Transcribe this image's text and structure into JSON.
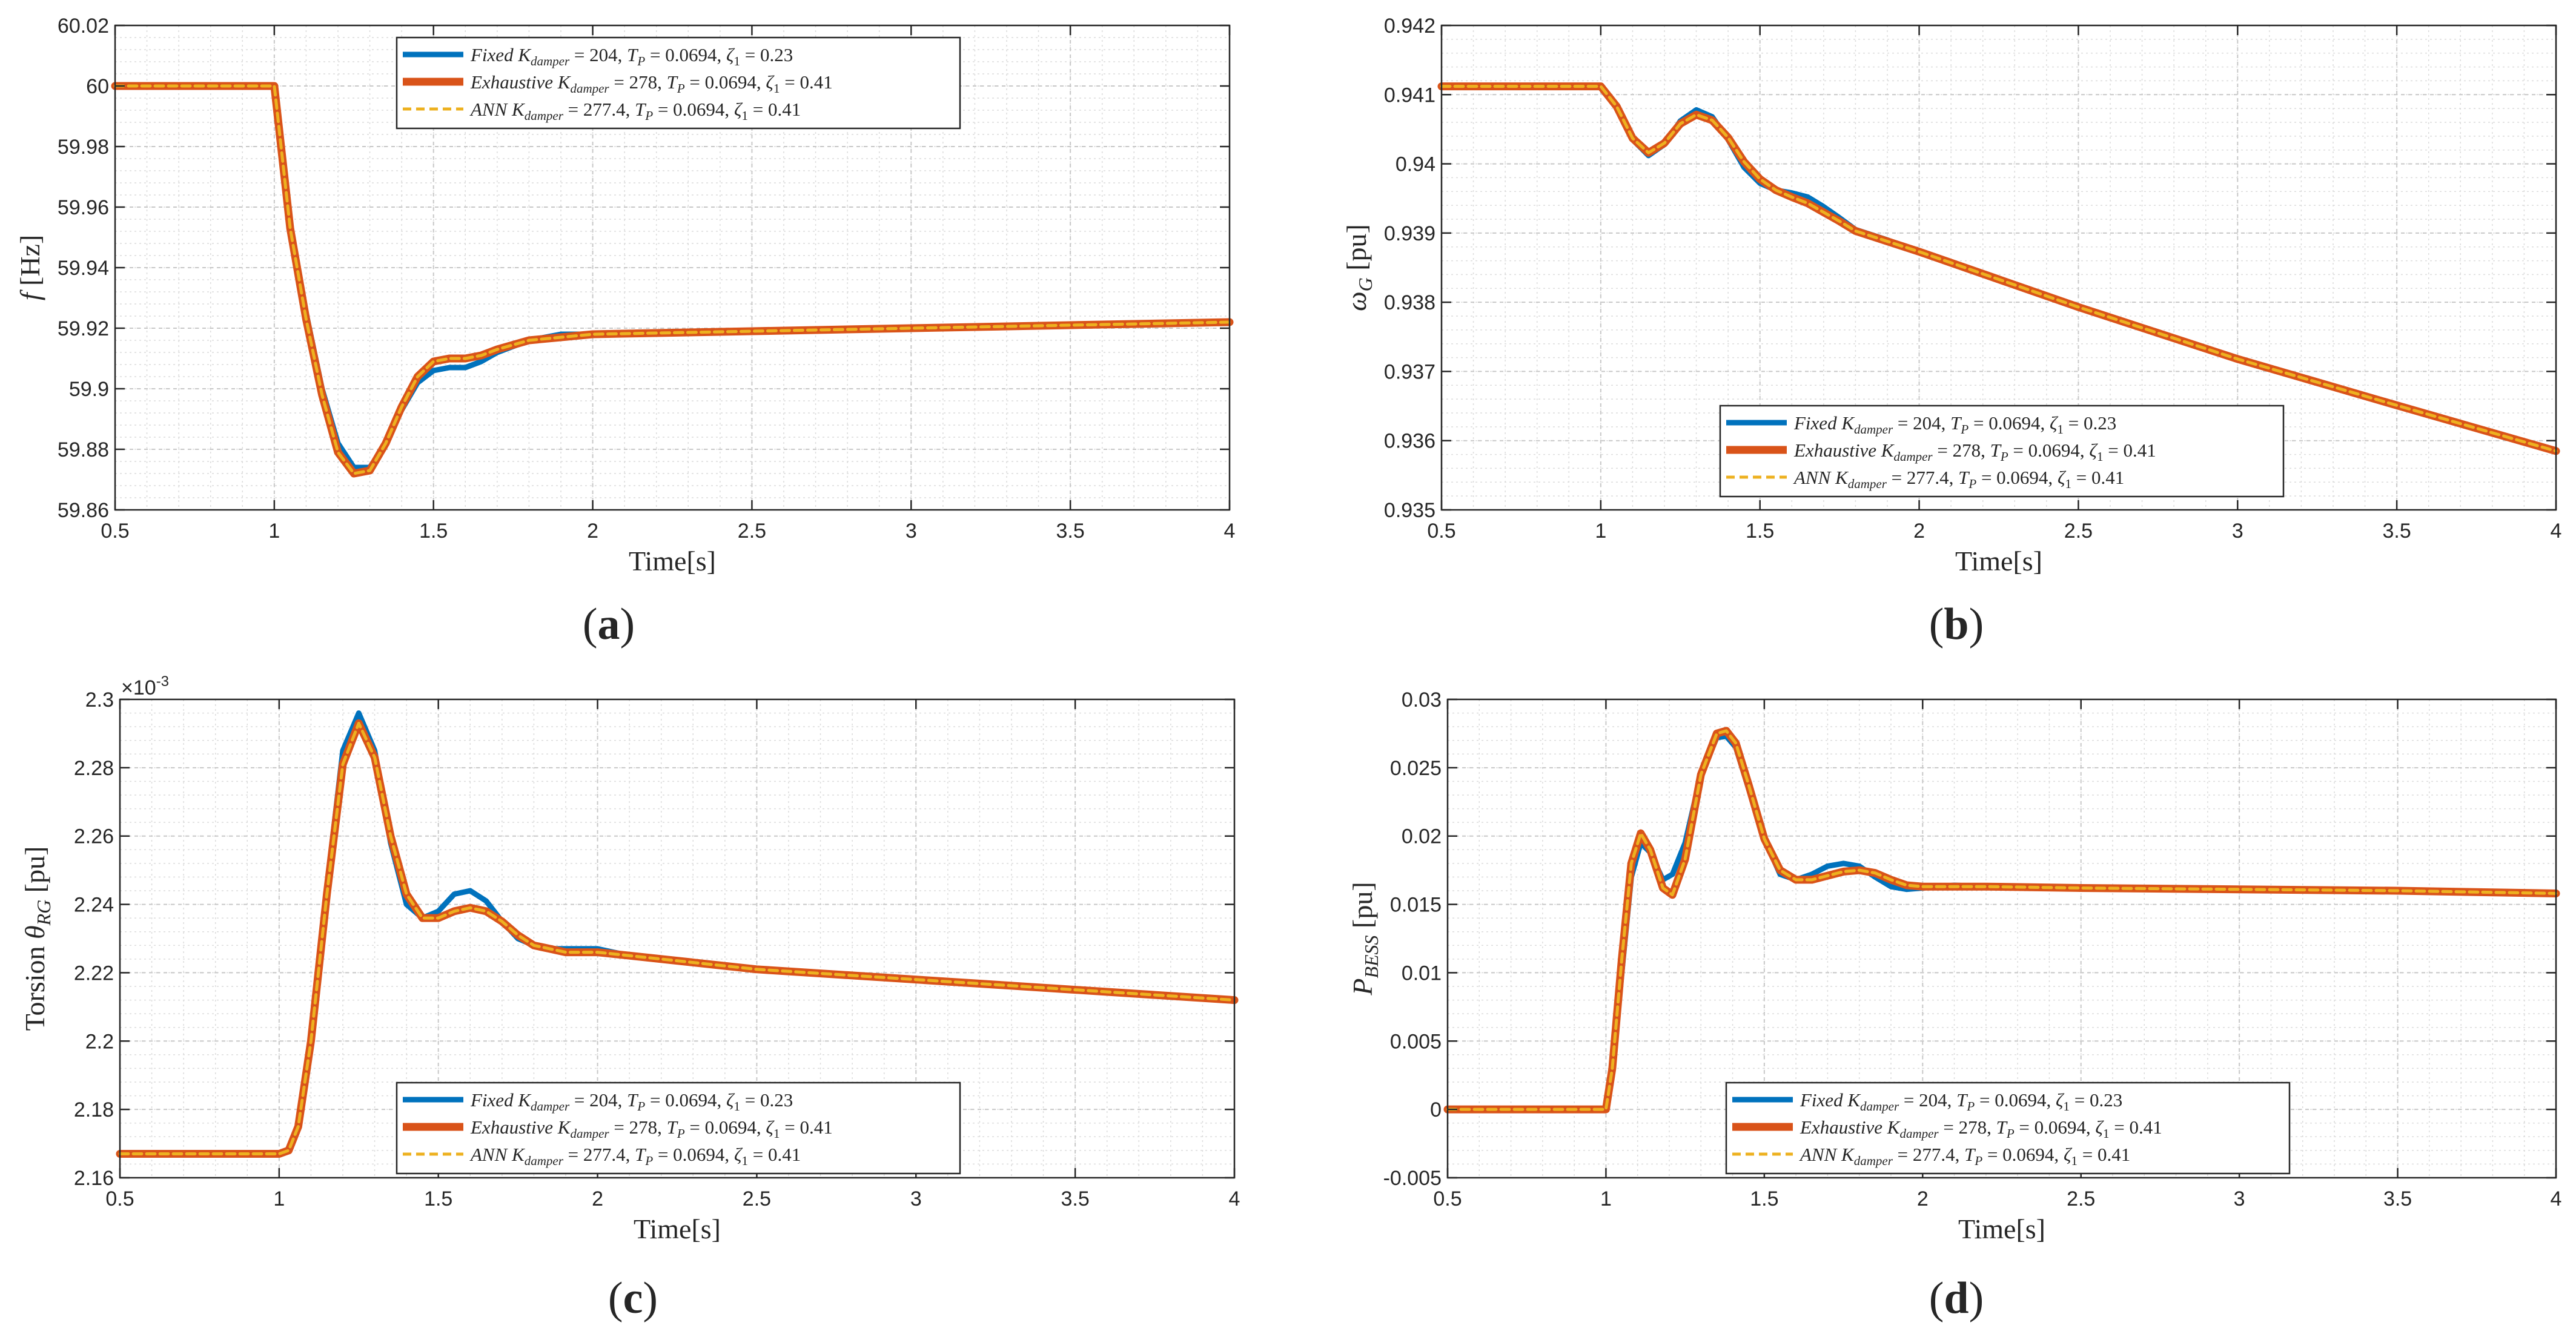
{
  "legend_labels": [
    "Fixed K_damper = 204,  T_P = 0.0694,  ζ1 = 0.23",
    "Exhaustive K_damper = 278,  T_P = 0.0694,  ζ1 = 0.41",
    "ANN K_damper = 277.4,  T_P = 0.0694,  ζ1 = 0.41"
  ],
  "colors": {
    "fixed": "#0072BD",
    "exhaustive": "#D95319",
    "ann": "#EDB120",
    "axis": "#262626",
    "grid": "#c8c8c8"
  },
  "chart_data": [
    {
      "type": "line",
      "caption": "(a)",
      "caption_letter": "a",
      "xlabel": "Time[s]",
      "ylabel": "f [Hz]",
      "ylabel_var": "f",
      "ylabel_unit": "[Hz]",
      "xlim": [
        0.5,
        4
      ],
      "ylim": [
        59.86,
        60.02
      ],
      "xticks": [
        0.5,
        1,
        1.5,
        2,
        2.5,
        3,
        3.5,
        4
      ],
      "yticks": [
        59.86,
        59.88,
        59.9,
        59.92,
        59.94,
        59.96,
        59.98,
        60,
        60.02
      ],
      "ytick_labels": [
        "59.86",
        "59.88",
        "59.9",
        "59.92",
        "59.94",
        "59.96",
        "59.98",
        "60",
        "60.02"
      ],
      "legend_location": "top-center",
      "grid": true,
      "series": [
        {
          "name": "Fixed",
          "x": [
            0.5,
            1.0,
            1.05,
            1.1,
            1.15,
            1.2,
            1.25,
            1.3,
            1.35,
            1.4,
            1.45,
            1.5,
            1.55,
            1.6,
            1.65,
            1.7,
            1.8,
            1.9,
            2.0,
            2.5,
            3.0,
            3.5,
            4.0
          ],
          "y": [
            60.0,
            60.0,
            59.955,
            59.925,
            59.9,
            59.882,
            59.874,
            59.874,
            59.882,
            59.893,
            59.902,
            59.906,
            59.907,
            59.907,
            59.909,
            59.912,
            59.916,
            59.918,
            59.918,
            59.919,
            59.92,
            59.921,
            59.922
          ]
        },
        {
          "name": "Exhaustive",
          "x": [
            0.5,
            1.0,
            1.05,
            1.1,
            1.15,
            1.2,
            1.25,
            1.3,
            1.35,
            1.4,
            1.45,
            1.5,
            1.55,
            1.6,
            1.65,
            1.7,
            1.8,
            1.9,
            2.0,
            2.5,
            3.0,
            3.5,
            4.0
          ],
          "y": [
            60.0,
            60.0,
            59.953,
            59.923,
            59.898,
            59.879,
            59.872,
            59.873,
            59.882,
            59.894,
            59.904,
            59.909,
            59.91,
            59.91,
            59.911,
            59.913,
            59.916,
            59.917,
            59.918,
            59.919,
            59.92,
            59.921,
            59.922
          ]
        },
        {
          "name": "ANN",
          "x": [
            0.5,
            1.0,
            1.05,
            1.1,
            1.15,
            1.2,
            1.25,
            1.3,
            1.35,
            1.4,
            1.45,
            1.5,
            1.55,
            1.6,
            1.65,
            1.7,
            1.8,
            1.9,
            2.0,
            2.5,
            3.0,
            3.5,
            4.0
          ],
          "y": [
            60.0,
            60.0,
            59.953,
            59.923,
            59.898,
            59.879,
            59.872,
            59.873,
            59.882,
            59.894,
            59.904,
            59.909,
            59.91,
            59.91,
            59.911,
            59.913,
            59.916,
            59.917,
            59.918,
            59.919,
            59.92,
            59.921,
            59.922
          ]
        }
      ]
    },
    {
      "type": "line",
      "caption": "(b)",
      "caption_letter": "b",
      "xlabel": "Time[s]",
      "ylabel": "ωG [pu]",
      "ylabel_var": "ω",
      "ylabel_sub": "G",
      "ylabel_unit": "[pu]",
      "xlim": [
        0.5,
        4
      ],
      "ylim": [
        0.935,
        0.942
      ],
      "xticks": [
        0.5,
        1,
        1.5,
        2,
        2.5,
        3,
        3.5,
        4
      ],
      "yticks": [
        0.935,
        0.936,
        0.937,
        0.938,
        0.939,
        0.94,
        0.941,
        0.942
      ],
      "ytick_labels": [
        "0.935",
        "0.936",
        "0.937",
        "0.938",
        "0.939",
        "0.94",
        "0.941",
        "0.942"
      ],
      "legend_location": "bottom-center",
      "grid": true,
      "series": [
        {
          "name": "Fixed",
          "x": [
            0.5,
            1.0,
            1.05,
            1.1,
            1.15,
            1.2,
            1.25,
            1.3,
            1.35,
            1.4,
            1.45,
            1.5,
            1.55,
            1.6,
            1.65,
            1.7,
            1.75,
            1.8,
            1.9,
            2.0,
            2.5,
            3.0,
            3.5,
            4.0
          ],
          "y": [
            0.94112,
            0.94112,
            0.94085,
            0.94035,
            0.94012,
            0.94028,
            0.94062,
            0.94078,
            0.94068,
            0.94035,
            0.93995,
            0.93972,
            0.93962,
            0.93958,
            0.93952,
            0.93938,
            0.93922,
            0.93905,
            0.9389,
            0.93873,
            0.93793,
            0.93718,
            0.93651,
            0.93585
          ]
        },
        {
          "name": "Exhaustive",
          "x": [
            0.5,
            1.0,
            1.05,
            1.1,
            1.15,
            1.2,
            1.25,
            1.3,
            1.35,
            1.4,
            1.45,
            1.5,
            1.55,
            1.6,
            1.65,
            1.7,
            1.75,
            1.8,
            1.9,
            2.0,
            2.5,
            3.0,
            3.5,
            4.0
          ],
          "y": [
            0.94112,
            0.94112,
            0.94083,
            0.94037,
            0.94016,
            0.9403,
            0.94058,
            0.94071,
            0.94063,
            0.94038,
            0.94003,
            0.93978,
            0.93962,
            0.93952,
            0.93943,
            0.9393,
            0.93917,
            0.93903,
            0.93888,
            0.93873,
            0.93793,
            0.93718,
            0.93651,
            0.93585
          ]
        },
        {
          "name": "ANN",
          "x": [
            0.5,
            1.0,
            1.05,
            1.1,
            1.15,
            1.2,
            1.25,
            1.3,
            1.35,
            1.4,
            1.45,
            1.5,
            1.55,
            1.6,
            1.65,
            1.7,
            1.75,
            1.8,
            1.9,
            2.0,
            2.5,
            3.0,
            3.5,
            4.0
          ],
          "y": [
            0.94112,
            0.94112,
            0.94083,
            0.94037,
            0.94016,
            0.9403,
            0.94058,
            0.94071,
            0.94063,
            0.94038,
            0.94003,
            0.93978,
            0.93962,
            0.93952,
            0.93943,
            0.9393,
            0.93917,
            0.93903,
            0.93888,
            0.93873,
            0.93793,
            0.93718,
            0.93651,
            0.93585
          ]
        }
      ]
    },
    {
      "type": "line",
      "caption": "(c)",
      "caption_letter": "c",
      "xlabel": "Time[s]",
      "ylabel": "Torsion θRG [pu]",
      "ylabel_pre": "Torsion ",
      "ylabel_var": "θ",
      "ylabel_sub": "RG",
      "ylabel_unit": "[pu]",
      "exponent": "×10⁻³",
      "exponent_base": "×10",
      "exponent_power": "-3",
      "xlim": [
        0.5,
        4
      ],
      "ylim": [
        2.16,
        2.3
      ],
      "xticks": [
        0.5,
        1,
        1.5,
        2,
        2.5,
        3,
        3.5,
        4
      ],
      "yticks": [
        2.16,
        2.18,
        2.2,
        2.22,
        2.24,
        2.26,
        2.28,
        2.3
      ],
      "ytick_labels": [
        "2.16",
        "2.18",
        "2.2",
        "2.22",
        "2.24",
        "2.26",
        "2.28",
        "2.3"
      ],
      "legend_location": "bottom-center",
      "grid": true,
      "series": [
        {
          "name": "Fixed",
          "x": [
            0.5,
            1.0,
            1.03,
            1.06,
            1.1,
            1.15,
            1.2,
            1.25,
            1.3,
            1.35,
            1.4,
            1.45,
            1.5,
            1.55,
            1.6,
            1.65,
            1.7,
            1.75,
            1.8,
            1.85,
            1.9,
            1.95,
            2.0,
            2.1,
            2.5,
            3.0,
            3.5,
            4.0
          ],
          "y": [
            2.167,
            2.167,
            2.168,
            2.175,
            2.2,
            2.245,
            2.285,
            2.296,
            2.285,
            2.258,
            2.24,
            2.236,
            2.238,
            2.243,
            2.244,
            2.241,
            2.235,
            2.23,
            2.228,
            2.227,
            2.227,
            2.227,
            2.227,
            2.225,
            2.221,
            2.218,
            2.215,
            2.212
          ]
        },
        {
          "name": "Exhaustive",
          "x": [
            0.5,
            1.0,
            1.03,
            1.06,
            1.1,
            1.15,
            1.2,
            1.25,
            1.3,
            1.35,
            1.4,
            1.45,
            1.5,
            1.55,
            1.6,
            1.65,
            1.7,
            1.75,
            1.8,
            1.85,
            1.9,
            1.95,
            2.0,
            2.1,
            2.5,
            3.0,
            3.5,
            4.0
          ],
          "y": [
            2.167,
            2.167,
            2.168,
            2.175,
            2.2,
            2.243,
            2.281,
            2.293,
            2.283,
            2.26,
            2.243,
            2.236,
            2.236,
            2.238,
            2.239,
            2.238,
            2.235,
            2.231,
            2.228,
            2.227,
            2.226,
            2.226,
            2.226,
            2.225,
            2.221,
            2.218,
            2.215,
            2.212
          ]
        },
        {
          "name": "ANN",
          "x": [
            0.5,
            1.0,
            1.03,
            1.06,
            1.1,
            1.15,
            1.2,
            1.25,
            1.3,
            1.35,
            1.4,
            1.45,
            1.5,
            1.55,
            1.6,
            1.65,
            1.7,
            1.75,
            1.8,
            1.85,
            1.9,
            1.95,
            2.0,
            2.1,
            2.5,
            3.0,
            3.5,
            4.0
          ],
          "y": [
            2.167,
            2.167,
            2.168,
            2.175,
            2.2,
            2.243,
            2.281,
            2.293,
            2.283,
            2.26,
            2.243,
            2.236,
            2.236,
            2.238,
            2.239,
            2.238,
            2.235,
            2.231,
            2.228,
            2.227,
            2.226,
            2.226,
            2.226,
            2.225,
            2.221,
            2.218,
            2.215,
            2.212
          ]
        }
      ]
    },
    {
      "type": "line",
      "caption": "(d)",
      "caption_letter": "d",
      "xlabel": "Time[s]",
      "ylabel": "PBESS [pu]",
      "ylabel_var": "P",
      "ylabel_sub": "BESS",
      "ylabel_unit": "[pu]",
      "xlim": [
        0.5,
        4
      ],
      "ylim": [
        -0.005,
        0.03
      ],
      "xticks": [
        0.5,
        1,
        1.5,
        2,
        2.5,
        3,
        3.5,
        4
      ],
      "yticks": [
        -0.005,
        0,
        0.005,
        0.01,
        0.015,
        0.02,
        0.025,
        0.03
      ],
      "ytick_labels": [
        "-0.005",
        "0",
        "0.005",
        "0.01",
        "0.015",
        "0.02",
        "0.025",
        "0.03"
      ],
      "legend_location": "bottom-center",
      "grid": true,
      "series": [
        {
          "name": "Fixed",
          "x": [
            0.5,
            1.0,
            1.02,
            1.05,
            1.08,
            1.11,
            1.14,
            1.18,
            1.21,
            1.25,
            1.3,
            1.35,
            1.38,
            1.41,
            1.45,
            1.5,
            1.55,
            1.6,
            1.65,
            1.7,
            1.75,
            1.8,
            1.85,
            1.9,
            1.95,
            2.0,
            2.05,
            2.1,
            2.2,
            2.5,
            3.0,
            3.5,
            4.0
          ],
          "y": [
            0.0,
            0.0,
            0.003,
            0.01,
            0.017,
            0.0195,
            0.0188,
            0.0168,
            0.0172,
            0.0195,
            0.0245,
            0.0272,
            0.0273,
            0.0265,
            0.0235,
            0.0198,
            0.0172,
            0.0168,
            0.0172,
            0.0178,
            0.018,
            0.0178,
            0.017,
            0.0163,
            0.0161,
            0.0162,
            0.0163,
            0.0164,
            0.0163,
            0.0162,
            0.0161,
            0.016,
            0.0158
          ]
        },
        {
          "name": "Exhaustive",
          "x": [
            0.5,
            1.0,
            1.02,
            1.05,
            1.08,
            1.11,
            1.14,
            1.18,
            1.21,
            1.25,
            1.3,
            1.35,
            1.38,
            1.41,
            1.45,
            1.5,
            1.55,
            1.6,
            1.65,
            1.7,
            1.75,
            1.8,
            1.85,
            1.9,
            1.95,
            2.0,
            2.05,
            2.1,
            2.2,
            2.5,
            3.0,
            3.5,
            4.0
          ],
          "y": [
            0.0,
            0.0,
            0.003,
            0.011,
            0.018,
            0.0202,
            0.019,
            0.0162,
            0.0157,
            0.0183,
            0.0245,
            0.0275,
            0.0277,
            0.0268,
            0.0238,
            0.0198,
            0.0175,
            0.0168,
            0.0168,
            0.0171,
            0.0174,
            0.0175,
            0.0173,
            0.0168,
            0.0164,
            0.0163,
            0.0163,
            0.0163,
            0.0163,
            0.0162,
            0.0161,
            0.016,
            0.0158
          ]
        },
        {
          "name": "ANN",
          "x": [
            0.5,
            1.0,
            1.02,
            1.05,
            1.08,
            1.11,
            1.14,
            1.18,
            1.21,
            1.25,
            1.3,
            1.35,
            1.38,
            1.41,
            1.45,
            1.5,
            1.55,
            1.6,
            1.65,
            1.7,
            1.75,
            1.8,
            1.85,
            1.9,
            1.95,
            2.0,
            2.05,
            2.1,
            2.2,
            2.5,
            3.0,
            3.5,
            4.0
          ],
          "y": [
            0.0,
            0.0,
            0.003,
            0.011,
            0.018,
            0.0202,
            0.019,
            0.0162,
            0.0157,
            0.0183,
            0.0245,
            0.0275,
            0.0277,
            0.0268,
            0.0238,
            0.0198,
            0.0175,
            0.0168,
            0.0168,
            0.0171,
            0.0174,
            0.0175,
            0.0173,
            0.0168,
            0.0164,
            0.0163,
            0.0163,
            0.0163,
            0.0163,
            0.0162,
            0.0161,
            0.016,
            0.0158
          ]
        }
      ]
    }
  ]
}
